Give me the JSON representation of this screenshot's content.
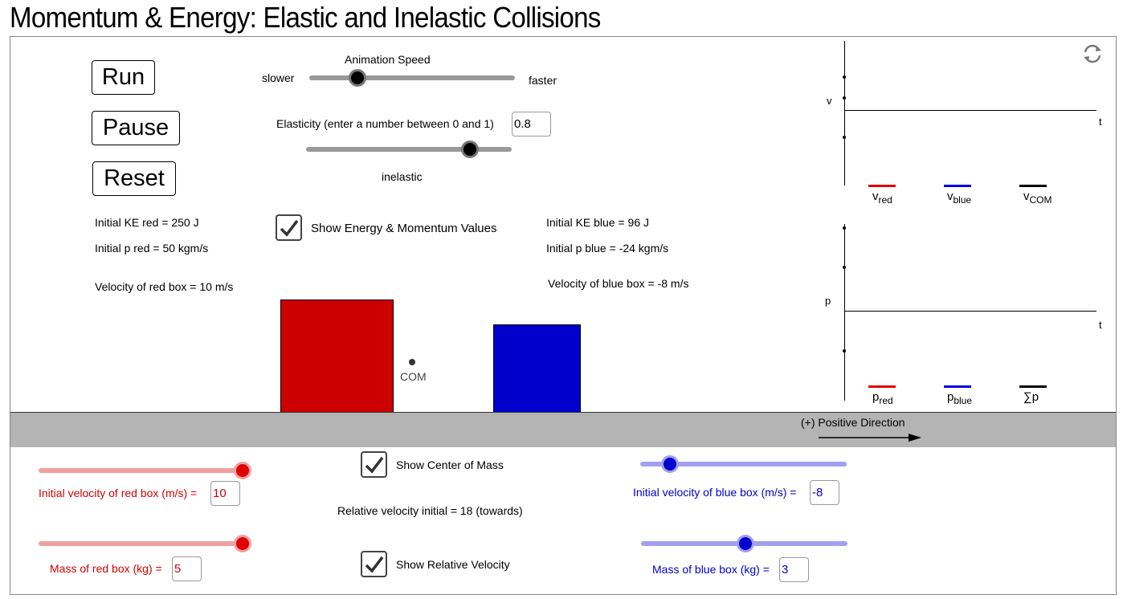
{
  "page": {
    "title": "Momentum & Energy: Elastic and Inelastic Collisions"
  },
  "buttons": {
    "run": "Run",
    "pause": "Pause",
    "reset": "Reset"
  },
  "animation_speed": {
    "title": "Animation Speed",
    "slower": "slower",
    "faster": "faster",
    "value": 0.23
  },
  "elasticity": {
    "label": "Elasticity (enter a number between 0 and 1)",
    "value": "0.8",
    "slider_value": 0.8,
    "caption": "inelastic"
  },
  "red_info": {
    "ke": "Initial KE red = 250 J",
    "p": "Initial p red = 50 kgm/s",
    "velocity": "Velocity of red box = 10 m/s"
  },
  "blue_info": {
    "ke": "Initial KE blue = 96 J",
    "p": "Initial p blue = -24 kgm/s",
    "velocity": "Velocity of blue box = -8 m/s"
  },
  "checkboxes": {
    "show_energy": {
      "label": "Show Energy & Momentum Values",
      "checked": true
    },
    "show_com": {
      "label": "Show Center of Mass",
      "checked": true
    },
    "show_relative": {
      "label": "Show Relative Velocity",
      "checked": true
    }
  },
  "com_label": "COM",
  "direction_label": "(+) Positive Direction",
  "relative_velocity": "Relative velocity initial = 18 (towards)",
  "red_controls": {
    "velocity_label": "Initial velocity of red box (m/s) =",
    "velocity_value": "10",
    "mass_label": "Mass of red box (kg) =",
    "mass_value": "5"
  },
  "blue_controls": {
    "velocity_label": "Initial velocity of blue box (m/s) =",
    "velocity_value": "-8",
    "mass_label": "Mass of blue box (kg) =",
    "mass_value": "3"
  },
  "velocity_graph": {
    "y_axis": "v",
    "x_axis": "t",
    "legend": [
      {
        "base": "v",
        "sub": "red",
        "color": "#e00000"
      },
      {
        "base": "v",
        "sub": "blue",
        "color": "#0000dd"
      },
      {
        "base": "v",
        "sub": "COM",
        "color": "#000000"
      }
    ]
  },
  "momentum_graph": {
    "y_axis": "p",
    "x_axis": "t",
    "legend": [
      {
        "base": "p",
        "sub": "red",
        "color": "#e00000"
      },
      {
        "base": "p",
        "sub": "blue",
        "color": "#0000dd"
      },
      {
        "base": "∑p",
        "sub": "",
        "color": "#000000"
      }
    ]
  },
  "colors": {
    "red_box": "#cc0000",
    "blue_box": "#0000cc",
    "ground": "#b4b4b4",
    "red_slider": "#f0a0a0",
    "blue_slider": "#a0a0f0"
  },
  "icons": {
    "refresh": "refresh-icon"
  }
}
